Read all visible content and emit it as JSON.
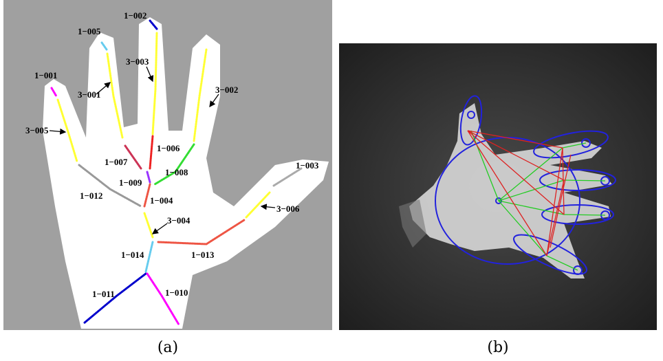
{
  "panel_a": {
    "labels": [
      "1−002",
      "1−005",
      "3−003",
      "1−001",
      "3−001",
      "3−002",
      "3−005",
      "1−006",
      "1−007",
      "1−008",
      "1−003",
      "1−009",
      "1−012",
      "1−004",
      "3−006",
      "3−004",
      "1−013",
      "1−014",
      "1−011",
      "1−010"
    ]
  },
  "captions": [
    "(a)",
    "(b)"
  ]
}
